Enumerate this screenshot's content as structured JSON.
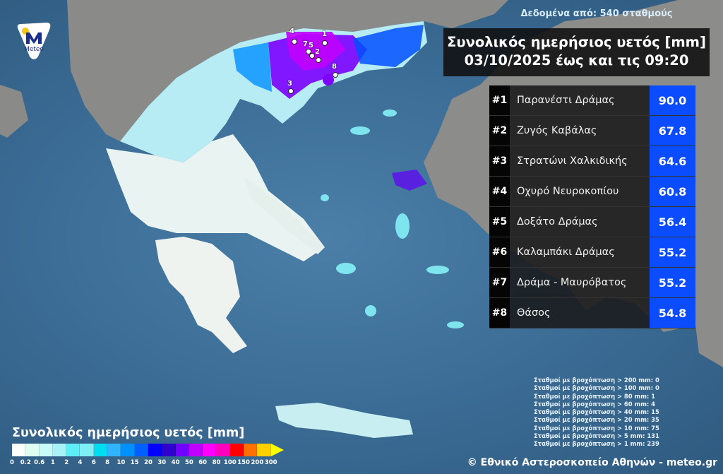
{
  "header": {
    "stations_note": "Δεδομένα από: 540 σταθμούς",
    "title_line1": "Συνολικός ημερήσιος υετός [mm]",
    "title_line2": "03/10/2025 έως και τις 09:20"
  },
  "logo": {
    "text": "Meteo",
    "icon": "meteo-logo"
  },
  "ranking": [
    {
      "rank": "#1",
      "station": "Παρανέστι Δράμας",
      "value": "90.0"
    },
    {
      "rank": "#2",
      "station": "Ζυγός Καβάλας",
      "value": "67.8"
    },
    {
      "rank": "#3",
      "station": "Στρατώνι Χαλκιδικής",
      "value": "64.6"
    },
    {
      "rank": "#4",
      "station": "Οχυρό Νευροκοπίου",
      "value": "60.8"
    },
    {
      "rank": "#5",
      "station": "Δοξάτο Δράμας",
      "value": "56.4"
    },
    {
      "rank": "#6",
      "station": "Καλαμπάκι Δράμας",
      "value": "55.2"
    },
    {
      "rank": "#7",
      "station": "Δράμα - Μαυρόβατος",
      "value": "55.2"
    },
    {
      "rank": "#8",
      "station": "Θάσος",
      "value": "54.8"
    }
  ],
  "map_markers": [
    "1",
    "4",
    "7",
    "5",
    "2",
    "8",
    "3"
  ],
  "stats": [
    "Σταθμοί με βροχόπτωση > 200 mm: 0",
    "Σταθμοί με βροχόπτωση > 100 mm: 0",
    "Σταθμοί με βροχόπτωση > 80 mm: 1",
    "Σταθμοί με βροχόπτωση > 60 mm: 4",
    "Σταθμοί με βροχόπτωση > 40 mm: 15",
    "Σταθμοί με βροχόπτωση > 20 mm: 35",
    "Σταθμοί με βροχόπτωση > 10 mm: 75",
    "Σταθμοί με βροχόπτωση > 5 mm: 131",
    "Σταθμοί με βροχόπτωση > 1 mm: 239"
  ],
  "legend": {
    "title": "Συνολικός ημερήσιος υετός [mm]",
    "labels": [
      "0",
      "0.2",
      "0.6",
      "1",
      "2",
      "4",
      "6",
      "8",
      "10",
      "15",
      "20",
      "30",
      "40",
      "50",
      "60",
      "80",
      "100",
      "150",
      "200",
      "300"
    ],
    "colors": [
      "#ffffff",
      "#dffff2",
      "#c8fafa",
      "#a8f2f8",
      "#5eeef8",
      "#80eef6",
      "#00dcf0",
      "#30b4ff",
      "#0090ff",
      "#0060ff",
      "#0000ff",
      "#3000cc",
      "#7000ff",
      "#c000ff",
      "#ff00ff",
      "#ff00c0",
      "#ff0000",
      "#ff7000",
      "#ffd000"
    ],
    "overflow_color": "#ffff00"
  },
  "copyright": "© Εθνικό Αστεροσκοπείο Αθηνών - meteo.gr"
}
